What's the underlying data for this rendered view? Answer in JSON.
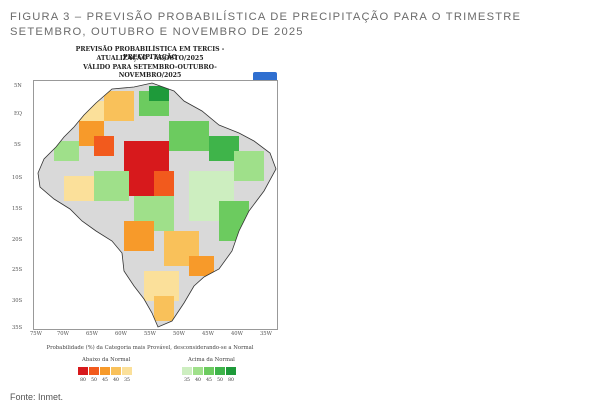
{
  "figure": {
    "caption": "FIGURA 3 – PREVISÃO PROBABILÍSTICA DE PRECIPITAÇÃO PARA O TRIMESTRE SETEMBRO, OUTUBRO E NOVEMBRO DE 2025",
    "source": "Fonte: Inmet."
  },
  "map": {
    "header_line1": "PREVISÃO PROBABILÍSTICA EM TERCIS - PRECIPITAÇÃO",
    "header_line2": "ATUALIZAÇÃO - AGOSTO/2025",
    "header_line3": "VÁLIDO PARA SETEMBRO-OUTUBRO-NOVEMBRO/2025",
    "lat_labels": [
      "5N",
      "EQ",
      "5S",
      "10S",
      "15S",
      "20S",
      "25S",
      "30S",
      "35S"
    ],
    "lon_labels": [
      "75W",
      "70W",
      "65W",
      "60W",
      "55W",
      "50W",
      "45W",
      "40W",
      "35W"
    ],
    "note": "Probabilidade (%) da Categoria mais Provável, desconsiderando-se a Normal",
    "legend_below_title": "Abaixo da Normal",
    "legend_above_title": "Acima da Normal",
    "legend_below": [
      {
        "value": "80",
        "color": "#d7191c"
      },
      {
        "value": "50",
        "color": "#f25a1d"
      },
      {
        "value": "45",
        "color": "#f79a2a"
      },
      {
        "value": "40",
        "color": "#f9c15a"
      },
      {
        "value": "35",
        "color": "#fbe09a"
      }
    ],
    "legend_above": [
      {
        "value": "35",
        "color": "#cdeec0"
      },
      {
        "value": "40",
        "color": "#9fe08a"
      },
      {
        "value": "45",
        "color": "#6ccb5f"
      },
      {
        "value": "50",
        "color": "#3fb44a"
      },
      {
        "value": "80",
        "color": "#1e9a3a"
      }
    ]
  }
}
